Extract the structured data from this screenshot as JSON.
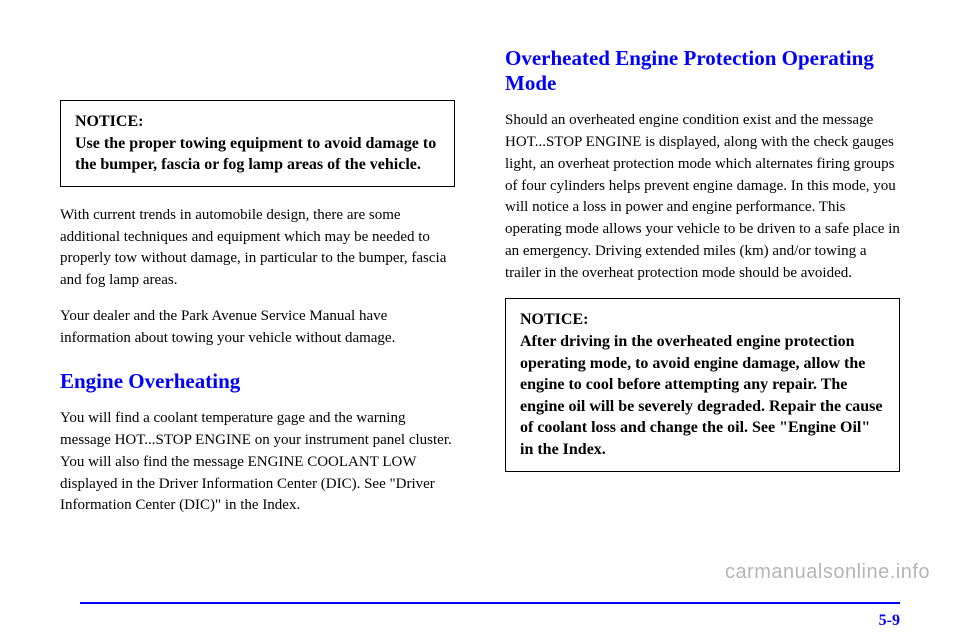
{
  "left": {
    "notice_label": "NOTICE:",
    "notice_text": "Use the proper towing equipment to avoid damage to the bumper, fascia or fog lamp areas of the vehicle.",
    "para1": "With current trends in automobile design, there are some additional techniques and equipment which may be needed to properly tow without damage, in particular to the bumper, fascia and fog lamp areas.",
    "para2": "Your dealer and the Park Avenue Service Manual have information about towing your vehicle without damage.",
    "heading": "Engine Overheating",
    "para3": "You will find a coolant temperature gage and the warning message HOT...STOP ENGINE on your instrument panel cluster. You will also find the message ENGINE COOLANT LOW displayed in the Driver Information Center (DIC). See \"Driver Information Center (DIC)\" in the Index."
  },
  "right": {
    "heading": "Overheated Engine Protection Operating Mode",
    "para1": "Should an overheated engine condition exist and the message HOT...STOP ENGINE is displayed, along with the check gauges light, an overheat protection mode which alternates firing groups of four cylinders helps prevent engine damage. In this mode, you will notice a loss in power and engine performance. This operating mode allows your vehicle to be driven to a safe place in an emergency. Driving extended miles (km) and/or towing a trailer in the overheat protection mode should be avoided.",
    "notice_label": "NOTICE:",
    "notice_text": "After driving in the overheated engine protection operating mode, to avoid engine damage, allow the engine to cool before attempting any repair. The engine oil will be severely degraded. Repair the cause of coolant loss and change the oil. See \"Engine Oil\" in the Index."
  },
  "page_number": "5-9",
  "watermark": "carmanualsonline.info"
}
